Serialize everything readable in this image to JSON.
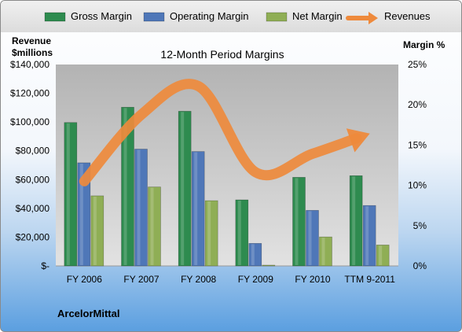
{
  "chart_data": {
    "type": "bar",
    "title": "12-Month Period Margins",
    "categories": [
      "FY 2006",
      "FY 2007",
      "FY 2008",
      "FY 2009",
      "FY 2010",
      "TTM 9-2011"
    ],
    "series": [
      {
        "name": "Gross Margin",
        "axis": "right",
        "unit": "%",
        "color": "#2e8b4f",
        "values": [
          17.8,
          19.7,
          19.2,
          8.2,
          11.0,
          11.2
        ]
      },
      {
        "name": "Operating Margin",
        "axis": "right",
        "unit": "%",
        "color": "#4f77b8",
        "values": [
          12.8,
          14.5,
          14.2,
          2.8,
          6.9,
          7.5
        ]
      },
      {
        "name": "Net Margin",
        "axis": "right",
        "unit": "%",
        "color": "#8fae55",
        "values": [
          8.7,
          9.8,
          8.1,
          0.1,
          3.6,
          2.6
        ]
      },
      {
        "name": "Revenues",
        "axis": "left",
        "type": "arrow-line",
        "color": "#ee8a3c",
        "values": [
          58870,
          105216,
          124936,
          65110,
          78025,
          92000
        ]
      }
    ],
    "left_axis": {
      "title_line1": "Revenue",
      "title_line2": "$millions",
      "min": 0,
      "max": 140000,
      "ticks": [
        "$-",
        "$20,000",
        "$40,000",
        "$60,000",
        "$80,000",
        "$100,000",
        "$120,000",
        "$140,000"
      ]
    },
    "right_axis": {
      "title": "Margin %",
      "min": 0,
      "max": 25,
      "ticks": [
        "0%",
        "5%",
        "10%",
        "15%",
        "20%",
        "25%"
      ]
    },
    "legend_position": "top",
    "grid": false
  },
  "company": "ArcelorMittal",
  "colors": {
    "plot_top": "#b8b8b8",
    "plot_bottom": "#dcdcdc"
  }
}
